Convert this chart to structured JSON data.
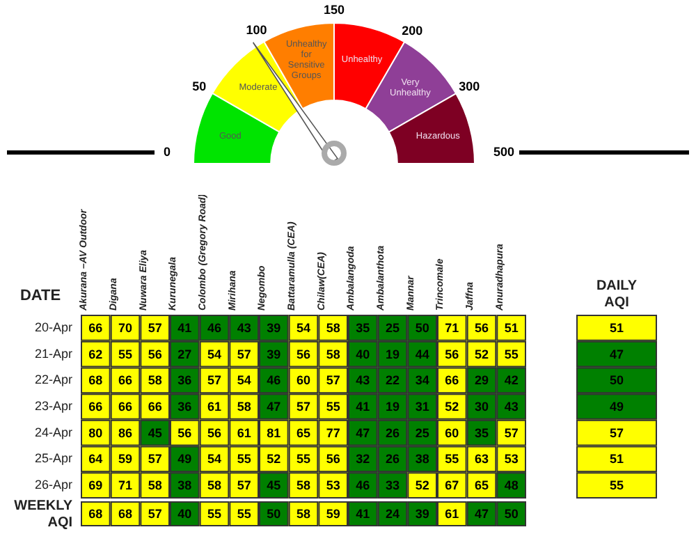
{
  "chart_data": [
    {
      "type": "donut",
      "categories": [
        "Good",
        "Moderate",
        "Unhealthy for Sensitive Groups",
        "Unhealthy",
        "Very Unhealthy",
        "Hazardous"
      ],
      "values": [
        16.7,
        16.7,
        16.6,
        16.7,
        16.7,
        16.6
      ],
      "colors": [
        "#00e400",
        "#ffff00",
        "#ff7e00",
        "#ff0000",
        "#8f3f97",
        "#7e0023"
      ],
      "annotations": [
        "0",
        "50",
        "100",
        "150",
        "200",
        "300",
        "500"
      ],
      "needle": "Moderate",
      "legend": false
    },
    {
      "type": "heatmap",
      "ylabel": "DATE",
      "data_labels": true,
      "colors": [
        "#008000",
        "#ffff00"
      ],
      "categories": [
        "Akurana –AV Outdoor",
        "Digana",
        "Nuwara Eliya",
        "Kurunegala",
        "Colombo (Gregory Road)",
        "Mirihana",
        "Negombo",
        "Battaramulla (CEA)",
        "Chilaw(CEA)",
        "Ambalangoda",
        "Ambalanthota",
        "Mannar",
        "Trincomale",
        "Jaffna",
        "Anuradhapura"
      ],
      "y_categories": [
        "20-Apr",
        "21-Apr",
        "22-Apr",
        "23-Apr",
        "24-Apr",
        "25-Apr",
        "26-Apr"
      ],
      "cells": [
        [
          66,
          70,
          57,
          41,
          46,
          43,
          39,
          54,
          58,
          35,
          25,
          50,
          71,
          56,
          51
        ],
        [
          62,
          55,
          56,
          27,
          54,
          57,
          39,
          56,
          58,
          40,
          19,
          44,
          56,
          52,
          55
        ],
        [
          68,
          66,
          58,
          36,
          57,
          54,
          46,
          60,
          57,
          43,
          22,
          34,
          66,
          29,
          42
        ],
        [
          66,
          66,
          66,
          36,
          61,
          58,
          47,
          57,
          55,
          41,
          19,
          31,
          52,
          30,
          43
        ],
        [
          80,
          86,
          45,
          56,
          56,
          61,
          81,
          65,
          77,
          47,
          26,
          25,
          60,
          35,
          57
        ],
        [
          64,
          59,
          57,
          49,
          54,
          55,
          52,
          55,
          56,
          32,
          26,
          38,
          55,
          63,
          53
        ],
        [
          69,
          71,
          58,
          38,
          58,
          57,
          45,
          58,
          53,
          46,
          33,
          52,
          67,
          65,
          48
        ]
      ]
    },
    {
      "type": "heatmap",
      "data_labels": true,
      "colors": [
        "#008000",
        "#ffff00"
      ],
      "tick_labels": "x",
      "categories": [
        "DAILY AQI"
      ],
      "y_categories": [
        null,
        null,
        null,
        null,
        null,
        null,
        null
      ],
      "cells": [
        [
          51
        ],
        [
          47
        ],
        [
          50
        ],
        [
          49
        ],
        [
          57
        ],
        [
          51
        ],
        [
          55
        ]
      ]
    },
    {
      "type": "heatmap",
      "data_labels": true,
      "colors": [
        "#008000",
        "#ffff00"
      ],
      "tick_labels": "y",
      "categories": [
        null,
        null,
        null,
        null,
        null,
        null,
        null,
        null,
        null,
        null,
        null,
        null,
        null,
        null,
        null
      ],
      "y_categories": [
        "WEEKLY AQI"
      ],
      "cells": [
        [
          68,
          68,
          57,
          40,
          55,
          55,
          50,
          58,
          59,
          41,
          24,
          39,
          61,
          47,
          50
        ]
      ]
    }
  ]
}
